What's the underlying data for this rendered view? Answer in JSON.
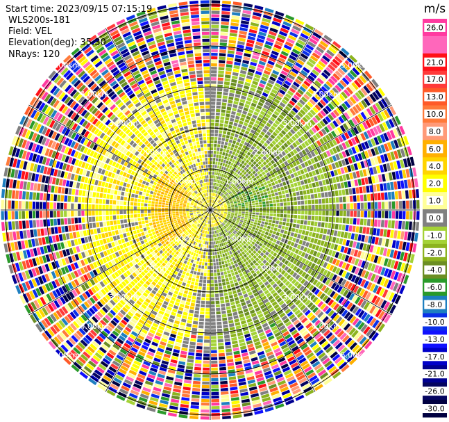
{
  "header": {
    "start_time": "Start time: 2023/09/15 07:15:19",
    "instrument": "WLS200s-181",
    "field": "Field: VEL",
    "elevation": "Elevation(deg): 35.30",
    "nrays": "NRays: 120"
  },
  "chart_data": {
    "type": "heatmap",
    "projection": "polar (PPI scan)",
    "field": "VEL",
    "nrays": 120,
    "elevation_deg": 35.3,
    "range_rings": [
      "1.00km",
      "2.00km",
      "3.00km",
      "4.00km",
      "5.00km"
    ],
    "colorbar": {
      "unit": "m/s",
      "bins": [
        {
          "label": "26.0",
          "color": "#ff3aa0"
        },
        {
          "label": "",
          "color": "#ff67bb"
        },
        {
          "label": "21.0",
          "color": "#ff1018"
        },
        {
          "label": "17.0",
          "color": "#ff3a3a"
        },
        {
          "label": "13.0",
          "color": "#ff5a28"
        },
        {
          "label": "10.0",
          "color": "#ff7a3a"
        },
        {
          "label": "8.0",
          "color": "#ff9a78"
        },
        {
          "label": "6.0",
          "color": "#ffb000"
        },
        {
          "label": "4.0",
          "color": "#ffd400"
        },
        {
          "label": "2.0",
          "color": "#ffff00"
        },
        {
          "label": "1.0",
          "color": "#ffff99"
        },
        {
          "label": "0.0",
          "color": "#808080"
        },
        {
          "label": "-1.0",
          "color": "#a4d236"
        },
        {
          "label": "-2.0",
          "color": "#8cb31e"
        },
        {
          "label": "-4.0",
          "color": "#6b8e23"
        },
        {
          "label": "-6.0",
          "color": "#2a9a2a"
        },
        {
          "label": "-8.0",
          "color": "#1e7fc0"
        },
        {
          "label": "-10.0",
          "color": "#0b2fe8"
        },
        {
          "label": "-13.0",
          "color": "#1010ff"
        },
        {
          "label": "-17.0",
          "color": "#0000c8"
        },
        {
          "label": "-21.0",
          "color": "#000090"
        },
        {
          "label": "-26.0",
          "color": "#050560"
        },
        {
          "label": "-30.0",
          "color": "#000040"
        }
      ]
    }
  }
}
